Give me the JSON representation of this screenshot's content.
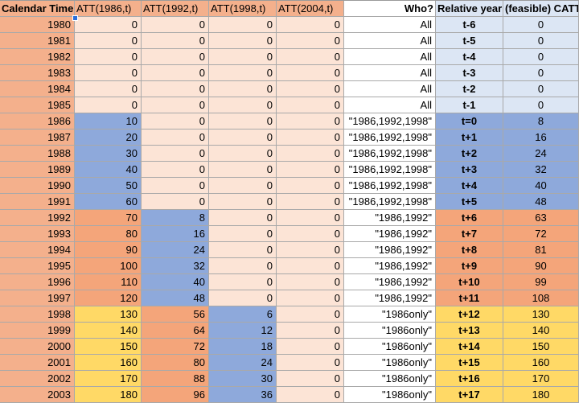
{
  "headers": [
    "Calendar Time",
    "ATT(1986,t)",
    "ATT(1992,t)",
    "ATT(1998,t)",
    "ATT(2004,t)",
    "Who?",
    "Relative year",
    "(feasible) CATT /"
  ],
  "colors": {
    "header_orange": "#f4b08c",
    "light_peach": "#fce4d6",
    "blue": "#8ea9db",
    "dark_orange": "#f4a57a",
    "yellow": "#ffd966",
    "light_blue": "#dce6f4",
    "white": "#ffffff"
  },
  "rows": [
    {
      "year": "1980",
      "a86": "0",
      "a92": "0",
      "a98": "0",
      "a04": "0",
      "who": "All",
      "rel": "t-6",
      "catt": "0"
    },
    {
      "year": "1981",
      "a86": "0",
      "a92": "0",
      "a98": "0",
      "a04": "0",
      "who": "All",
      "rel": "t-5",
      "catt": "0"
    },
    {
      "year": "1982",
      "a86": "0",
      "a92": "0",
      "a98": "0",
      "a04": "0",
      "who": "All",
      "rel": "t-4",
      "catt": "0"
    },
    {
      "year": "1983",
      "a86": "0",
      "a92": "0",
      "a98": "0",
      "a04": "0",
      "who": "All",
      "rel": "t-3",
      "catt": "0"
    },
    {
      "year": "1984",
      "a86": "0",
      "a92": "0",
      "a98": "0",
      "a04": "0",
      "who": "All",
      "rel": "t-2",
      "catt": "0"
    },
    {
      "year": "1985",
      "a86": "0",
      "a92": "0",
      "a98": "0",
      "a04": "0",
      "who": "All",
      "rel": "t-1",
      "catt": "0"
    },
    {
      "year": "1986",
      "a86": "10",
      "a92": "0",
      "a98": "0",
      "a04": "0",
      "who": "\"1986,1992,1998\"",
      "rel": "t=0",
      "catt": "8"
    },
    {
      "year": "1987",
      "a86": "20",
      "a92": "0",
      "a98": "0",
      "a04": "0",
      "who": "\"1986,1992,1998\"",
      "rel": "t+1",
      "catt": "16"
    },
    {
      "year": "1988",
      "a86": "30",
      "a92": "0",
      "a98": "0",
      "a04": "0",
      "who": "\"1986,1992,1998\"",
      "rel": "t+2",
      "catt": "24"
    },
    {
      "year": "1989",
      "a86": "40",
      "a92": "0",
      "a98": "0",
      "a04": "0",
      "who": "\"1986,1992,1998\"",
      "rel": "t+3",
      "catt": "32"
    },
    {
      "year": "1990",
      "a86": "50",
      "a92": "0",
      "a98": "0",
      "a04": "0",
      "who": "\"1986,1992,1998\"",
      "rel": "t+4",
      "catt": "40"
    },
    {
      "year": "1991",
      "a86": "60",
      "a92": "0",
      "a98": "0",
      "a04": "0",
      "who": "\"1986,1992,1998\"",
      "rel": "t+5",
      "catt": "48"
    },
    {
      "year": "1992",
      "a86": "70",
      "a92": "8",
      "a98": "0",
      "a04": "0",
      "who": "\"1986,1992\"",
      "rel": "t+6",
      "catt": "63"
    },
    {
      "year": "1993",
      "a86": "80",
      "a92": "16",
      "a98": "0",
      "a04": "0",
      "who": "\"1986,1992\"",
      "rel": "t+7",
      "catt": "72"
    },
    {
      "year": "1994",
      "a86": "90",
      "a92": "24",
      "a98": "0",
      "a04": "0",
      "who": "\"1986,1992\"",
      "rel": "t+8",
      "catt": "81"
    },
    {
      "year": "1995",
      "a86": "100",
      "a92": "32",
      "a98": "0",
      "a04": "0",
      "who": "\"1986,1992\"",
      "rel": "t+9",
      "catt": "90"
    },
    {
      "year": "1996",
      "a86": "110",
      "a92": "40",
      "a98": "0",
      "a04": "0",
      "who": "\"1986,1992\"",
      "rel": "t+10",
      "catt": "99"
    },
    {
      "year": "1997",
      "a86": "120",
      "a92": "48",
      "a98": "0",
      "a04": "0",
      "who": "\"1986,1992\"",
      "rel": "t+11",
      "catt": "108"
    },
    {
      "year": "1998",
      "a86": "130",
      "a92": "56",
      "a98": "6",
      "a04": "0",
      "who": "\"1986only\"",
      "rel": "t+12",
      "catt": "130"
    },
    {
      "year": "1999",
      "a86": "140",
      "a92": "64",
      "a98": "12",
      "a04": "0",
      "who": "\"1986only\"",
      "rel": "t+13",
      "catt": "140"
    },
    {
      "year": "2000",
      "a86": "150",
      "a92": "72",
      "a98": "18",
      "a04": "0",
      "who": "\"1986only\"",
      "rel": "t+14",
      "catt": "150"
    },
    {
      "year": "2001",
      "a86": "160",
      "a92": "80",
      "a98": "24",
      "a04": "0",
      "who": "\"1986only\"",
      "rel": "t+15",
      "catt": "160"
    },
    {
      "year": "2002",
      "a86": "170",
      "a92": "88",
      "a98": "30",
      "a04": "0",
      "who": "\"1986only\"",
      "rel": "t+16",
      "catt": "170"
    },
    {
      "year": "2003",
      "a86": "180",
      "a92": "96",
      "a98": "36",
      "a04": "0",
      "who": "\"1986only\"",
      "rel": "t+17",
      "catt": "180"
    }
  ]
}
